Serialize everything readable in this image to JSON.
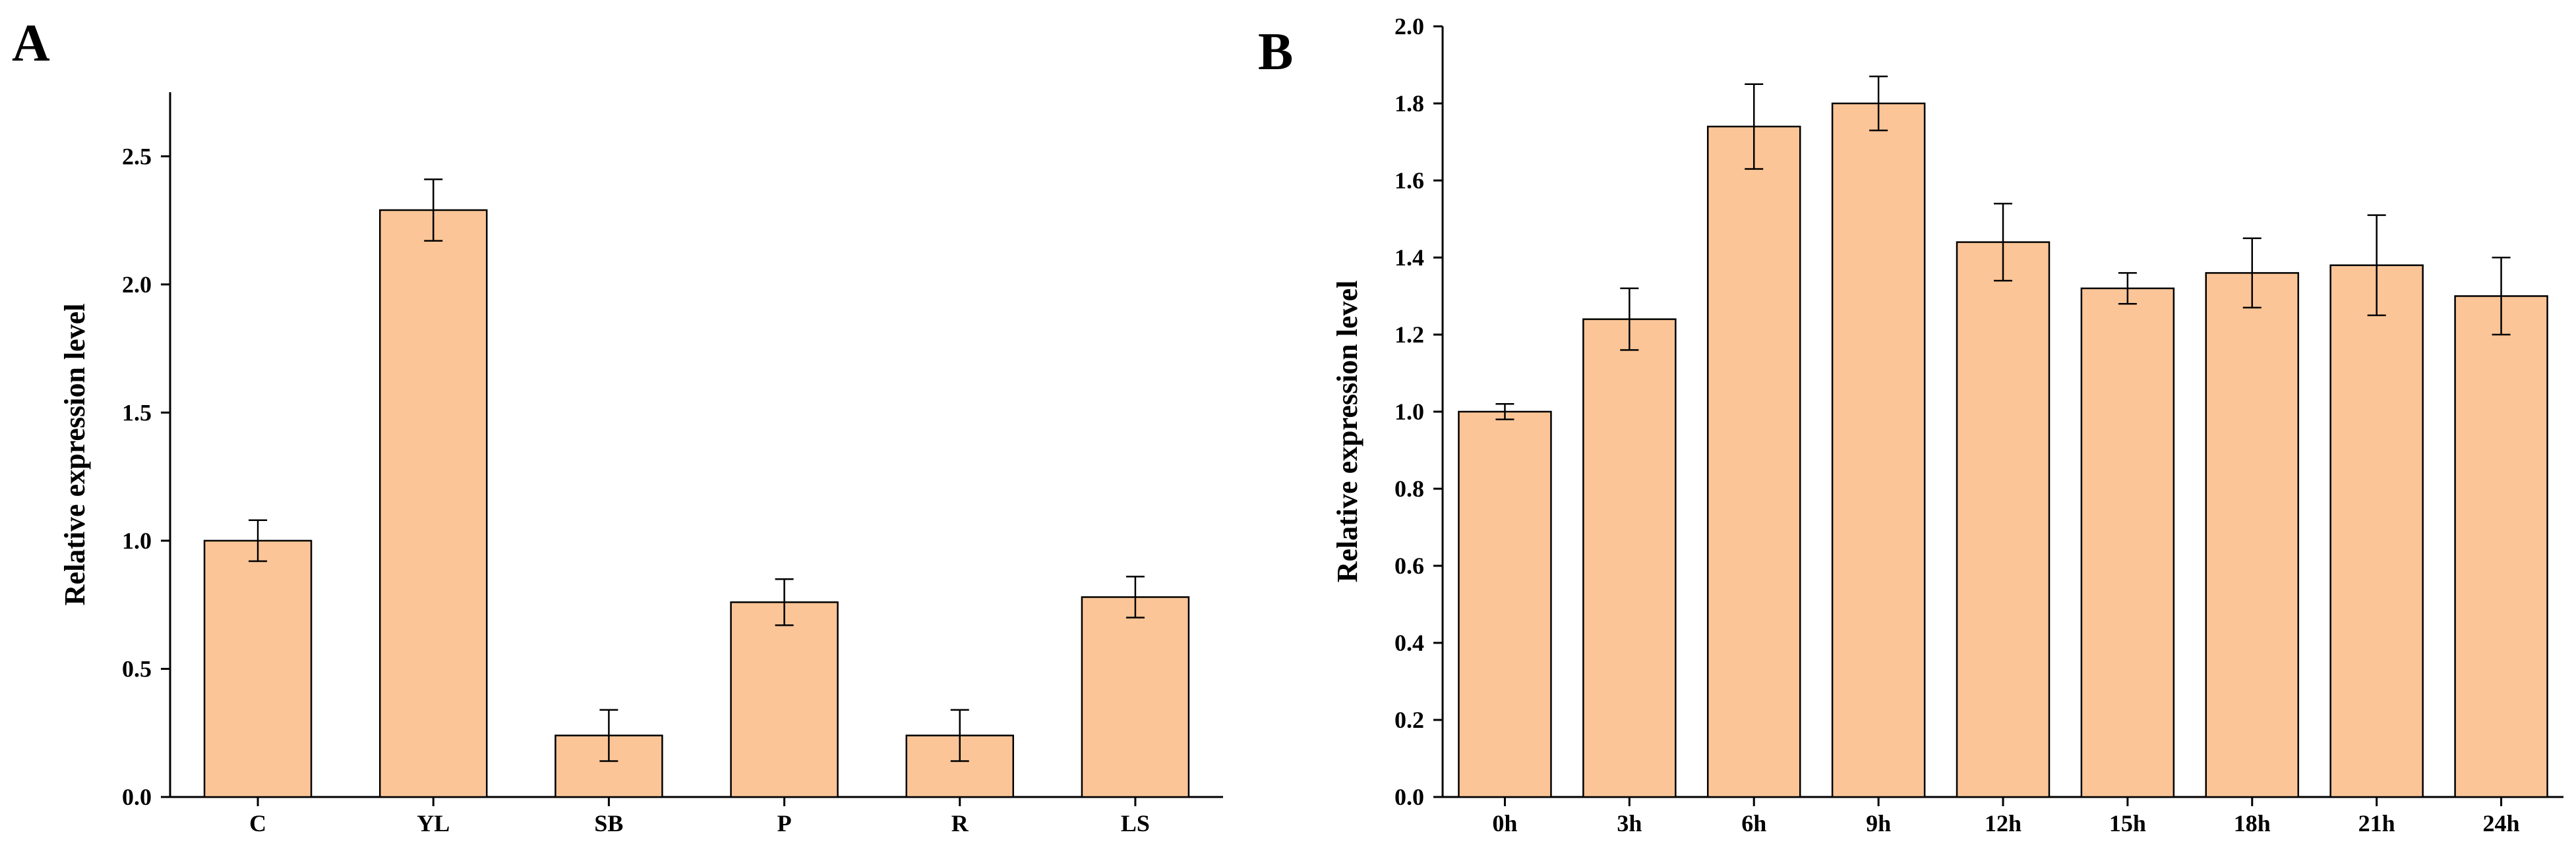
{
  "colors": {
    "bar_fill": "#FBC597",
    "stroke": "#000000"
  },
  "chart_data": [
    {
      "panel": "A",
      "type": "bar",
      "title": "",
      "xlabel": "",
      "ylabel": "Relative expression  level",
      "ylim": [
        0,
        2.75
      ],
      "yticks": [
        0.0,
        0.5,
        1.0,
        1.5,
        2.0,
        2.5
      ],
      "ytick_labels": [
        "0.0",
        "0.5",
        "1.0",
        "1.5",
        "2.0",
        "2.5"
      ],
      "grid": false,
      "categories": [
        "C",
        "YL",
        "SB",
        "P",
        "R",
        "LS"
      ],
      "values": [
        1.0,
        2.29,
        0.24,
        0.76,
        0.24,
        0.78
      ],
      "errors": [
        0.08,
        0.12,
        0.1,
        0.09,
        0.1,
        0.08
      ]
    },
    {
      "panel": "B",
      "type": "bar",
      "title": "",
      "xlabel": "",
      "ylabel": "Relative expression  level",
      "ylim": [
        0,
        2.0
      ],
      "yticks": [
        0.0,
        0.2,
        0.4,
        0.6,
        0.8,
        1.0,
        1.2,
        1.4,
        1.6,
        1.8,
        2.0
      ],
      "ytick_labels": [
        "0.0",
        "0.2",
        "0.4",
        "0.6",
        "0.8",
        "1.0",
        "1.2",
        "1.4",
        "1.6",
        "1.8",
        "2.0"
      ],
      "grid": false,
      "categories": [
        "0h",
        "3h",
        "6h",
        "9h",
        "12h",
        "15h",
        "18h",
        "21h",
        "24h"
      ],
      "values": [
        1.0,
        1.24,
        1.74,
        1.8,
        1.44,
        1.32,
        1.36,
        1.38,
        1.3
      ],
      "errors": [
        0.02,
        0.08,
        0.11,
        0.07,
        0.1,
        0.04,
        0.09,
        0.13,
        0.1
      ]
    }
  ]
}
